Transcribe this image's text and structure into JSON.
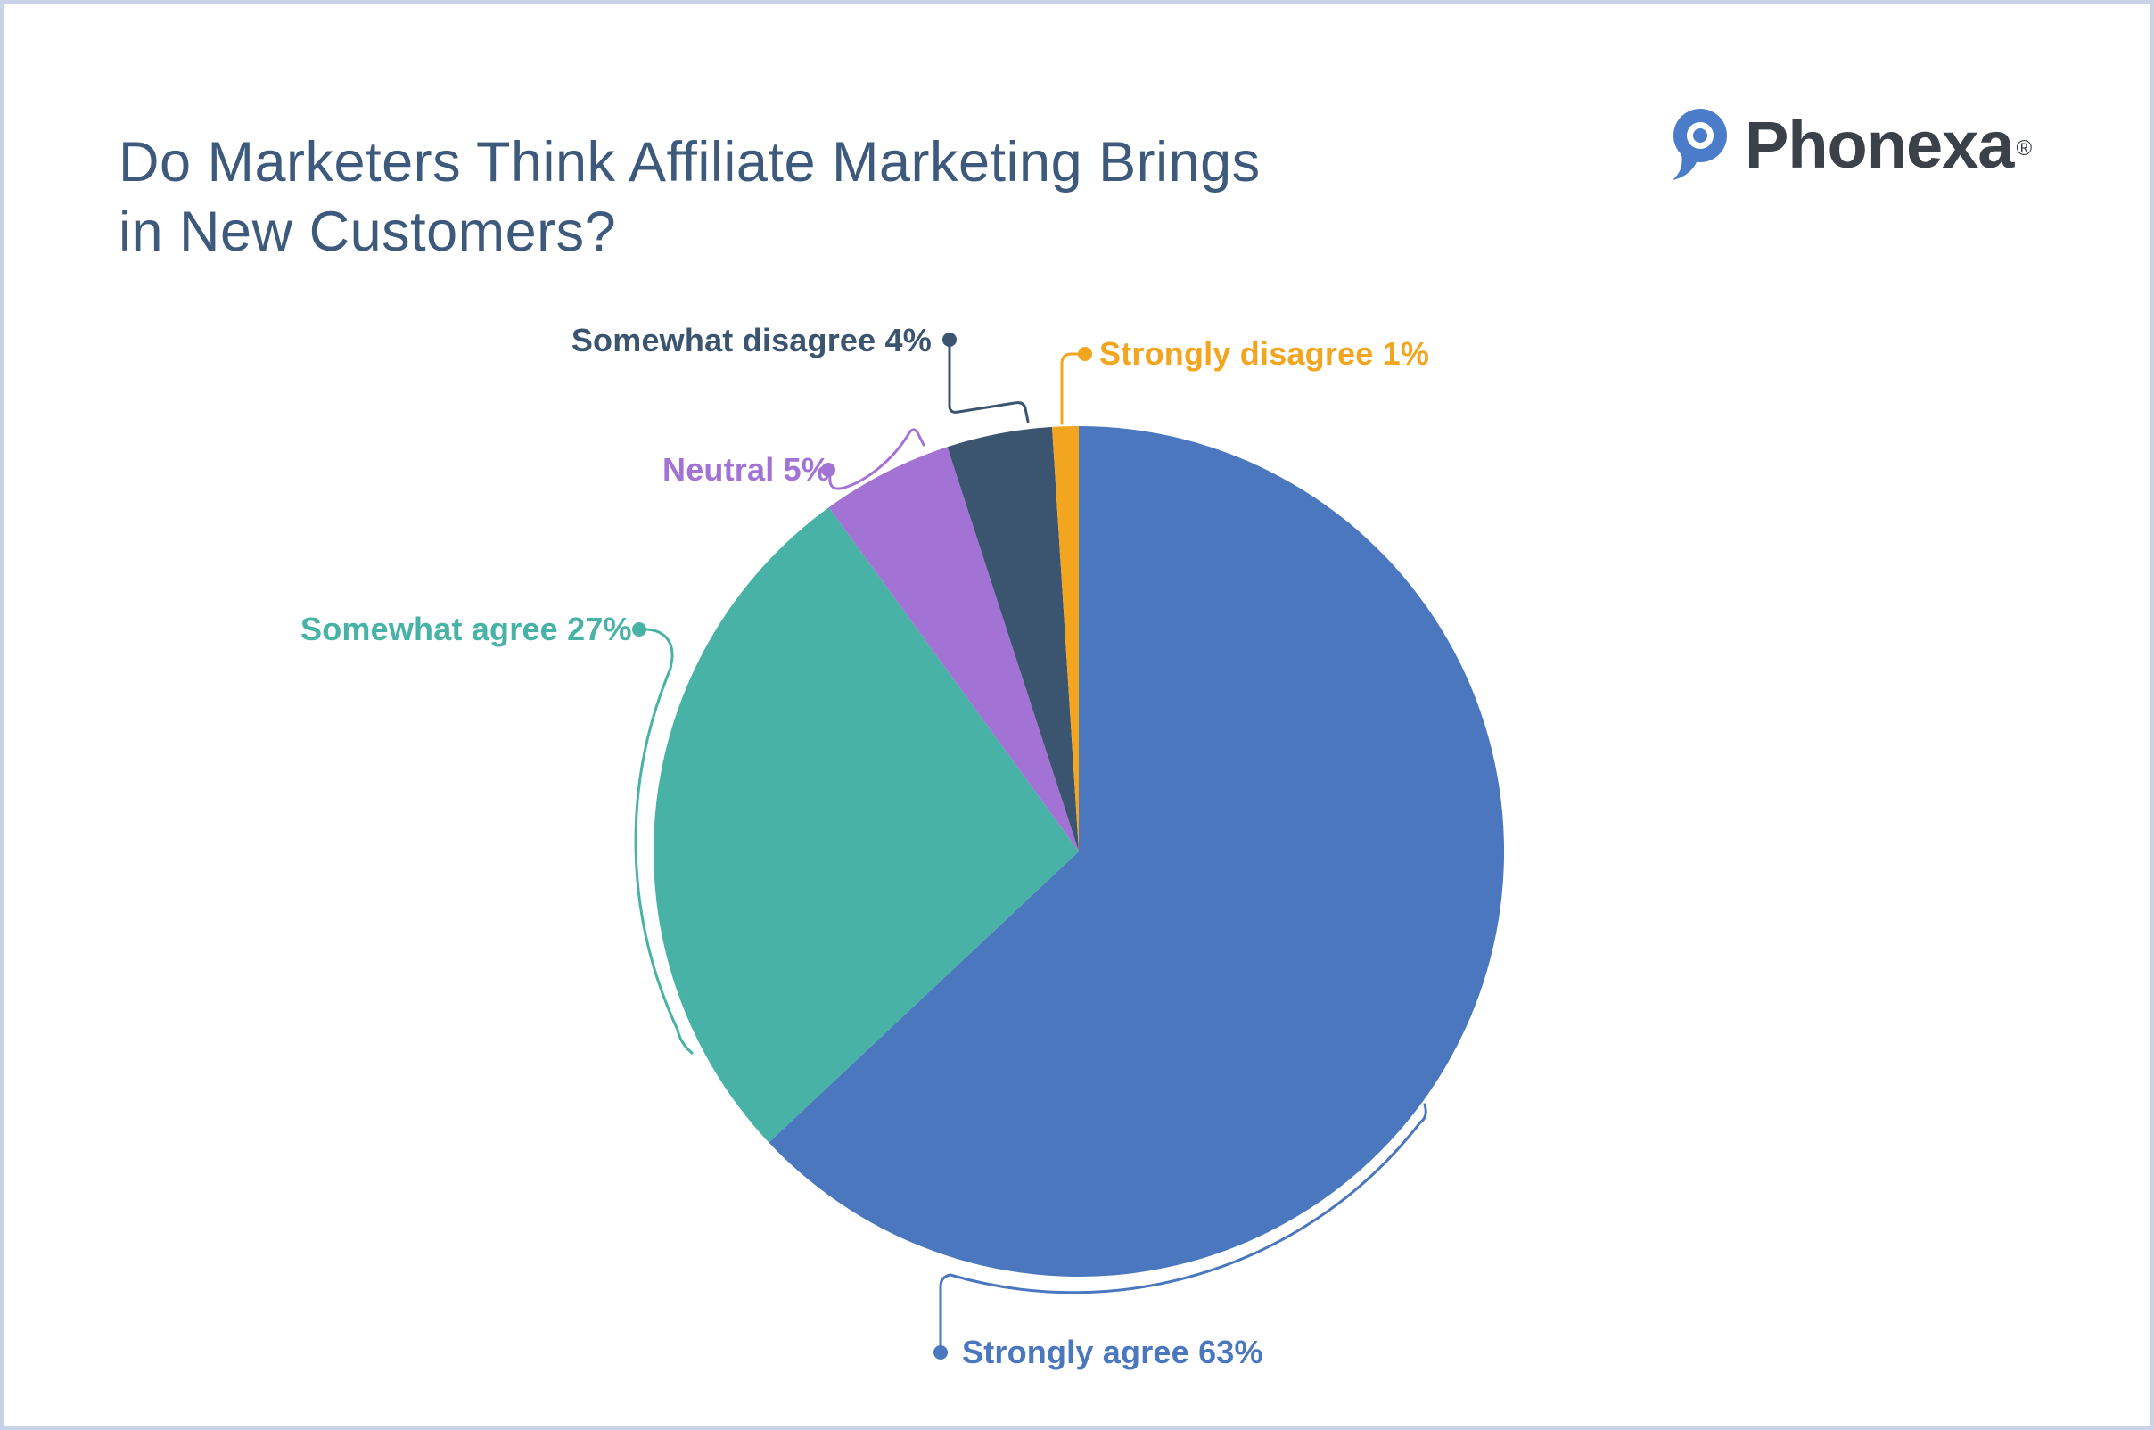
{
  "page": {
    "background_color": "#ffffff",
    "border_color": "#c9d2e6"
  },
  "header": {
    "title_line1": "Do Marketers Think Affiliate Marketing Brings",
    "title_line2": "in New Customers?",
    "title_color": "#3d5a7c"
  },
  "logo": {
    "brand": "Phonexa",
    "registered_mark": "®",
    "text_color": "#3a4149",
    "icon_color": "#4a7cc9"
  },
  "chart_data": {
    "type": "pie",
    "title": "Do Marketers Think Affiliate Marketing Brings in New Customers?",
    "unit": "%",
    "direction": "clockwise",
    "start_angle_deg": 0,
    "legend": "callout-labels",
    "slices": [
      {
        "label": "Strongly agree",
        "value": 63,
        "display": "Strongly agree 63%",
        "color": "#4a77bd"
      },
      {
        "label": "Somewhat agree",
        "value": 27,
        "display": "Somewhat agree 27%",
        "color": "#49b2a7"
      },
      {
        "label": "Neutral",
        "value": 5,
        "display": "Neutral 5%",
        "color": "#a273d5"
      },
      {
        "label": "Somewhat disagree",
        "value": 4,
        "display": "Somewhat disagree 4%",
        "color": "#3b5571"
      },
      {
        "label": "Strongly disagree",
        "value": 1,
        "display": "Strongly disagree 1%",
        "color": "#f2a620"
      }
    ]
  }
}
